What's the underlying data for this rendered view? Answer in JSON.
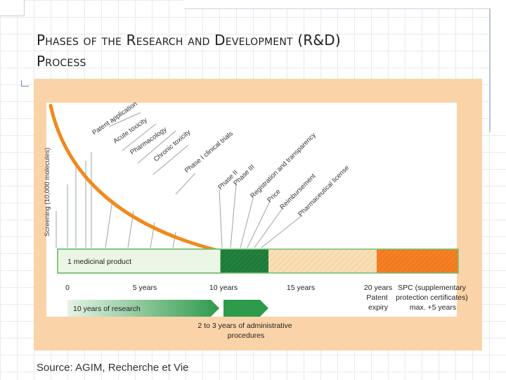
{
  "slide": {
    "title_line1": "Phases of the Research and Development (R&D)",
    "title_line2": "Process",
    "source": "Source: AGIM, Recherche et Vie"
  },
  "diagram": {
    "y_axis_label": "Screening (10,000 molecules)",
    "phases": [
      "Patent application",
      "Acute toxicity",
      "Pharmacology",
      "Chronic toxicity",
      "Phase I clinical trials",
      "Phase II",
      "Phase III",
      "Registration and transparency",
      "Price",
      "Reimbursement",
      "Pharmaceutical license"
    ],
    "bar_label": "1 medicinal product",
    "timeline_ticks": [
      "0",
      "5 years",
      "10 years",
      "15 years",
      "20 years"
    ],
    "patent_expiry_label": "Patent\nexpiry",
    "spc_label": "SPC (supplementary\nprotection certificates)\nmax. +5 years",
    "research_arrow_label": "10 years of research",
    "admin_label": "2 to 3 years of administrative\nprocedures",
    "colors": {
      "panel": "#fbd3a8",
      "curve": "#f08a1e",
      "guide_lines": "#9aa79a",
      "research_green": "#2e9a4c",
      "admin_green": "#1f7a3a",
      "patent_hatch": "#f9dfb6",
      "spc_orange": "#f2791c",
      "bar_outline": "#6fbf73"
    }
  }
}
